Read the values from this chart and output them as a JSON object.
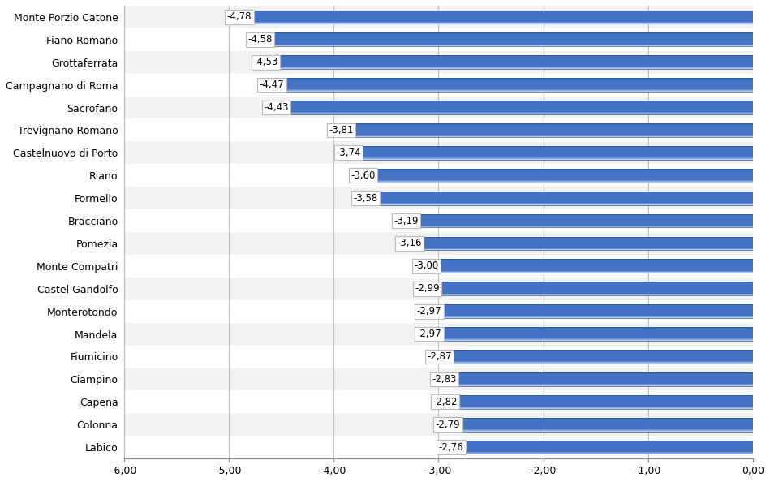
{
  "categories": [
    "Monte Porzio Catone",
    "Fiano Romano",
    "Grottaferrata",
    "Campagnano di Roma",
    "Sacrofano",
    "Trevignano Romano",
    "Castelnuovo di Porto",
    "Riano",
    "Formello",
    "Bracciano",
    "Pomezia",
    "Monte Compatri",
    "Castel Gandolfo",
    "Monterotondo",
    "Mandela",
    "Fiumicino",
    "Ciampino",
    "Capena",
    "Colonna",
    "Labico"
  ],
  "values": [
    -4.78,
    -4.58,
    -4.53,
    -4.47,
    -4.43,
    -3.81,
    -3.74,
    -3.6,
    -3.58,
    -3.19,
    -3.16,
    -3.0,
    -2.99,
    -2.97,
    -2.97,
    -2.87,
    -2.83,
    -2.82,
    -2.79,
    -2.76
  ],
  "labels": [
    "-4,78",
    "-4,58",
    "-4,53",
    "-4,47",
    "-4,43",
    "-3,81",
    "-3,74",
    "-3,60",
    "-3,58",
    "-3,19",
    "-3,16",
    "-3,00",
    "-2,99",
    "-2,97",
    "-2,97",
    "-2,87",
    "-2,83",
    "-2,82",
    "-2,79",
    "-2,76"
  ],
  "bar_color_main": "#4472C4",
  "bar_color_light": "#9DC3E6",
  "bar_color_dark": "#2E75B6",
  "bar_color_edge": "#2F5496",
  "label_box_color": "#FFFFFF",
  "label_box_edge": "#AAAAAA",
  "xlim": [
    -6.0,
    0.0
  ],
  "xticks": [
    -6.0,
    -5.0,
    -4.0,
    -3.0,
    -2.0,
    -1.0,
    0.0
  ],
  "xtick_labels": [
    "-6,00",
    "-5,00",
    "-4,00",
    "-3,00",
    "-2,00",
    "-1,00",
    "0,00"
  ],
  "background_color": "#FFFFFF",
  "plot_area_color": "#FFFFFF",
  "grid_color": "#C0C0C0",
  "bar_height": 0.6,
  "label_fontsize": 8.5,
  "tick_fontsize": 9,
  "ytick_fontsize": 9
}
